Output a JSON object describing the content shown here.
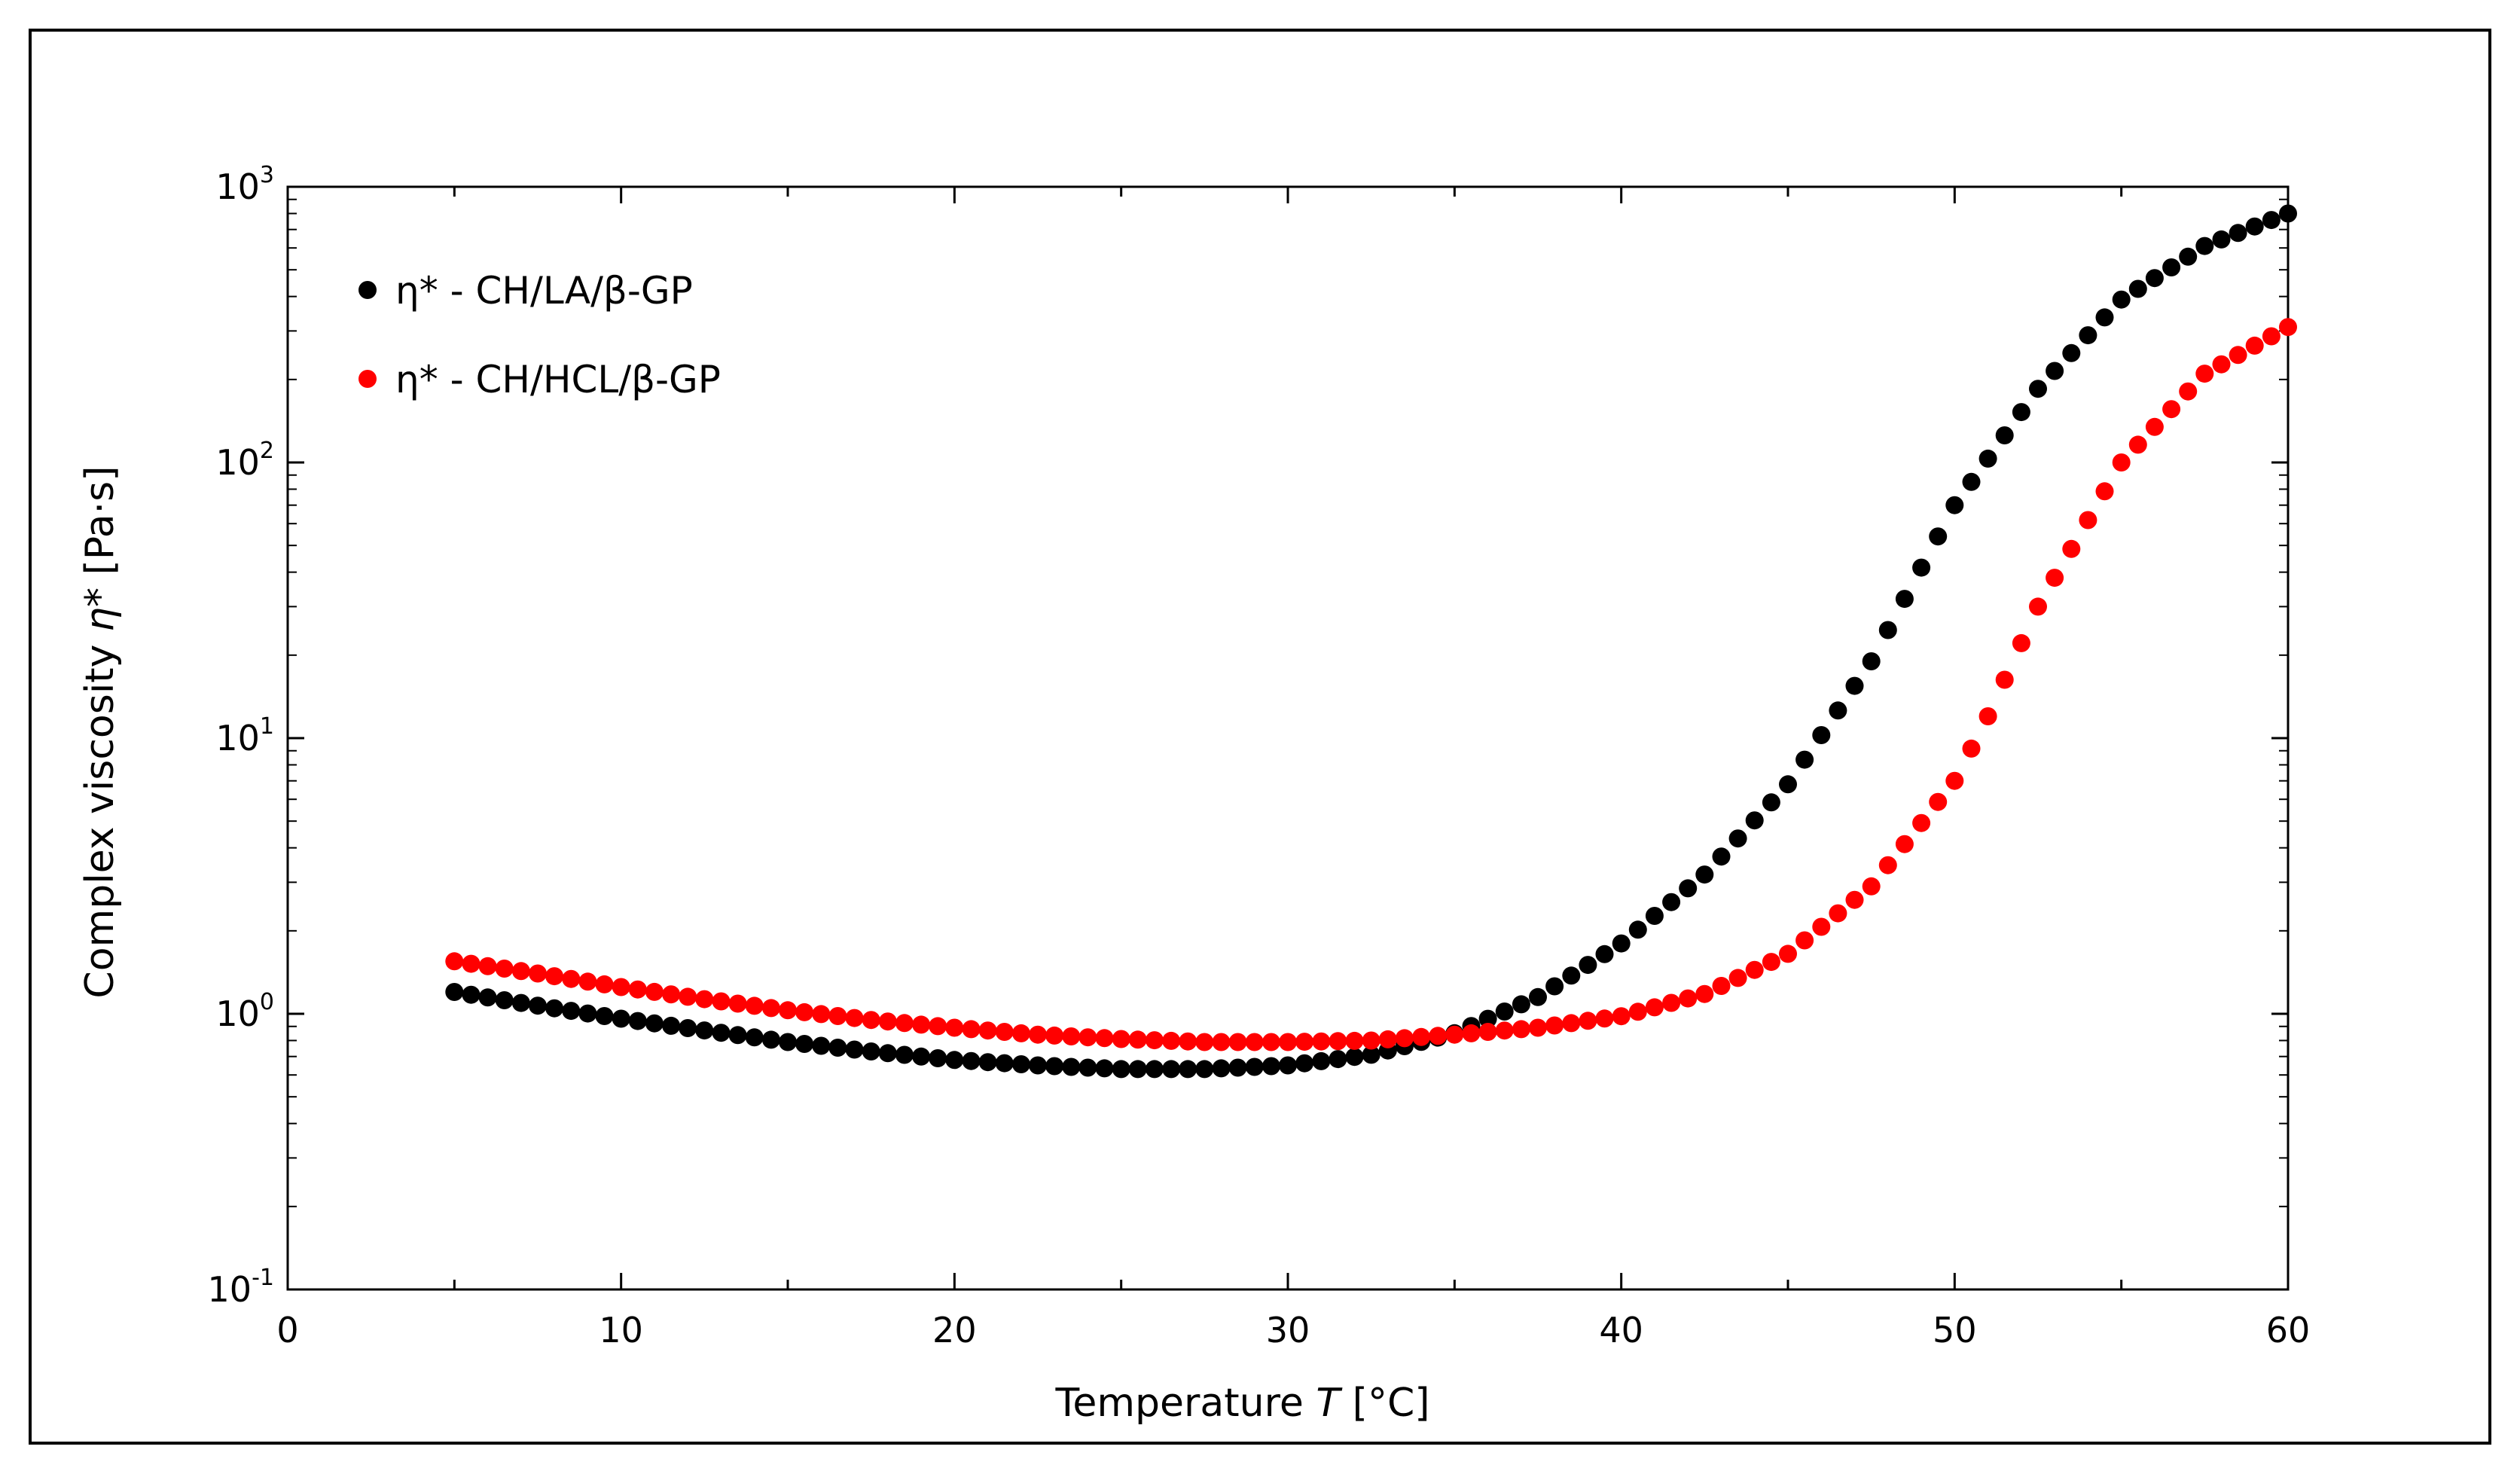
{
  "chart_data": {
    "type": "scatter",
    "xlabel_prefix": "Temperature ",
    "xlabel_var": "T",
    "xlabel_suffix": " [°C]",
    "ylabel_prefix": "Complex viscosity ",
    "ylabel_var": "η*",
    "ylabel_suffix": " [Pa·s]",
    "xlim": [
      0,
      60
    ],
    "ylim": [
      0.1,
      1000
    ],
    "yscale": "log",
    "x_ticks": [
      "0",
      "10",
      "20",
      "30",
      "40",
      "50",
      "60"
    ],
    "y_ticks": [
      {
        "base": "10",
        "exp": "-1"
      },
      {
        "base": "10",
        "exp": "0"
      },
      {
        "base": "10",
        "exp": "1"
      },
      {
        "base": "10",
        "exp": "2"
      },
      {
        "base": "10",
        "exp": "3"
      }
    ],
    "legend_position": "top-left",
    "series": [
      {
        "name": "η* - CH/LA/β-GP",
        "color": "#000000",
        "x": [
          5,
          7.5,
          10,
          12.5,
          15,
          17.5,
          20,
          22.5,
          25,
          27.5,
          30,
          32.5,
          35,
          37.5,
          40,
          42.5,
          45,
          47.5,
          50,
          52.5,
          55,
          57.5,
          60
        ],
        "y": [
          1.2,
          1.07,
          0.96,
          0.87,
          0.79,
          0.73,
          0.68,
          0.65,
          0.63,
          0.63,
          0.65,
          0.71,
          0.85,
          1.15,
          1.8,
          3.2,
          6.8,
          19,
          70,
          185,
          390,
          610,
          800
        ]
      },
      {
        "name": "η* - CH/HCL/β-GP",
        "color": "#ff0000",
        "x": [
          5,
          7.5,
          10,
          12.5,
          15,
          17.5,
          20,
          22.5,
          25,
          27.5,
          30,
          32.5,
          35,
          37.5,
          40,
          42.5,
          45,
          47.5,
          50,
          51,
          52.5,
          55,
          57.5,
          60
        ],
        "y": [
          1.55,
          1.4,
          1.25,
          1.13,
          1.03,
          0.95,
          0.89,
          0.84,
          0.81,
          0.79,
          0.79,
          0.8,
          0.84,
          0.89,
          0.98,
          1.18,
          1.65,
          2.9,
          7,
          12,
          30,
          100,
          210,
          310
        ]
      }
    ]
  }
}
